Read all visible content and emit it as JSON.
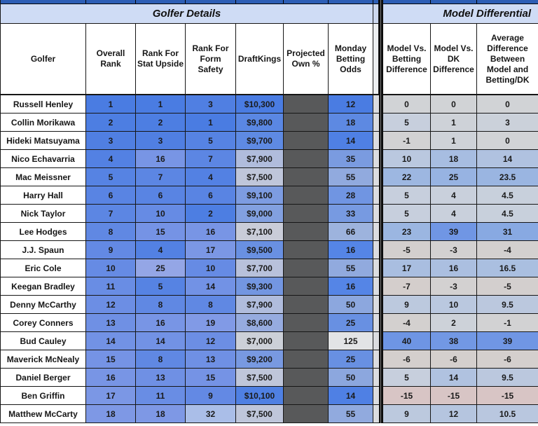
{
  "sections": {
    "golfer_details": "Golfer Details",
    "model_differential": "Model Differential"
  },
  "columns": [
    "Golfer",
    "Overall Rank",
    "Rank For Stat Upside",
    "Rank For Form Safety",
    "DraftKings",
    "Projected Own %",
    "Monday Betting Odds",
    "Model Vs. Betting Difference",
    "Model Vs. DK Difference",
    "Average Difference Between Model and Betting/DK"
  ],
  "colors": {
    "top_strip": "#2d5eb5",
    "section_band": "#cfdcf5",
    "own_cell": "#58595a",
    "strong_blue": "#4a7ce2",
    "neutral_gray": "#d1d3d6",
    "negative_pink": "#d8c5c5"
  },
  "rows": [
    {
      "golfer": "Russell Henley",
      "ranks": [
        {
          "v": "1",
          "bg": "#4a7ce2"
        },
        {
          "v": "1",
          "bg": "#4a7ce2"
        },
        {
          "v": "3",
          "bg": "#507fe2"
        }
      ],
      "dk": {
        "v": "$10,300",
        "bg": "#4a7ce2"
      },
      "odds": {
        "v": "12",
        "bg": "#4a7ce2"
      },
      "model": [
        {
          "v": "0",
          "bg": "#d1d3d6"
        },
        {
          "v": "0",
          "bg": "#d1d3d6"
        },
        {
          "v": "0",
          "bg": "#d1d3d6"
        }
      ]
    },
    {
      "golfer": "Collin Morikawa",
      "ranks": [
        {
          "v": "2",
          "bg": "#4d7ee2"
        },
        {
          "v": "2",
          "bg": "#4d7ee2"
        },
        {
          "v": "1",
          "bg": "#4a7ce2"
        }
      ],
      "dk": {
        "v": "$9,800",
        "bg": "#5a87e3"
      },
      "odds": {
        "v": "18",
        "bg": "#5d89e2"
      },
      "model": [
        {
          "v": "5",
          "bg": "#c7cfdd"
        },
        {
          "v": "1",
          "bg": "#ced2d8"
        },
        {
          "v": "3",
          "bg": "#cbd1da"
        }
      ]
    },
    {
      "golfer": "Hideki Matsuyama",
      "ranks": [
        {
          "v": "3",
          "bg": "#507fe2"
        },
        {
          "v": "3",
          "bg": "#507fe2"
        },
        {
          "v": "5",
          "bg": "#5683e3"
        }
      ],
      "dk": {
        "v": "$9,700",
        "bg": "#5e8ae3"
      },
      "odds": {
        "v": "14",
        "bg": "#4f80e4"
      },
      "model": [
        {
          "v": "-1",
          "bg": "#d2d2d3"
        },
        {
          "v": "1",
          "bg": "#ced2d8"
        },
        {
          "v": "0",
          "bg": "#d1d3d6"
        }
      ]
    },
    {
      "golfer": "Nico Echavarria",
      "ranks": [
        {
          "v": "4",
          "bg": "#5381e3"
        },
        {
          "v": "16",
          "bg": "#7895e5"
        },
        {
          "v": "7",
          "bg": "#5c86e3"
        }
      ],
      "dk": {
        "v": "$7,900",
        "bg": "#b0bcdc"
      },
      "odds": {
        "v": "35",
        "bg": "#7a9be0"
      },
      "model": [
        {
          "v": "10",
          "bg": "#bac8df"
        },
        {
          "v": "18",
          "bg": "#a7bde1"
        },
        {
          "v": "14",
          "bg": "#b0c2e0"
        }
      ]
    },
    {
      "golfer": "Mac Meissner",
      "ranks": [
        {
          "v": "5",
          "bg": "#5683e3"
        },
        {
          "v": "7",
          "bg": "#5c86e3"
        },
        {
          "v": "4",
          "bg": "#5381e3"
        }
      ],
      "dk": {
        "v": "$7,500",
        "bg": "#bfc6da"
      },
      "odds": {
        "v": "55",
        "bg": "#91aade"
      },
      "model": [
        {
          "v": "22",
          "bg": "#9db7e1"
        },
        {
          "v": "25",
          "bg": "#97b3e2"
        },
        {
          "v": "23.5",
          "bg": "#9ab5e1"
        }
      ]
    },
    {
      "golfer": "Harry Hall",
      "ranks": [
        {
          "v": "6",
          "bg": "#5984e3"
        },
        {
          "v": "6",
          "bg": "#5984e3"
        },
        {
          "v": "6",
          "bg": "#5984e3"
        }
      ],
      "dk": {
        "v": "$9,100",
        "bg": "#7d9ce1"
      },
      "odds": {
        "v": "28",
        "bg": "#7095e2"
      },
      "model": [
        {
          "v": "5",
          "bg": "#c7cfdd"
        },
        {
          "v": "4",
          "bg": "#c9d0dc"
        },
        {
          "v": "4.5",
          "bg": "#c8d0dc"
        }
      ]
    },
    {
      "golfer": "Nick Taylor",
      "ranks": [
        {
          "v": "7",
          "bg": "#5c86e3"
        },
        {
          "v": "10",
          "bg": "#668be4"
        },
        {
          "v": "2",
          "bg": "#4d7ee2"
        }
      ],
      "dk": {
        "v": "$9,000",
        "bg": "#82a0e0"
      },
      "odds": {
        "v": "33",
        "bg": "#779ae1"
      },
      "model": [
        {
          "v": "5",
          "bg": "#c7cfdd"
        },
        {
          "v": "4",
          "bg": "#c9d0dc"
        },
        {
          "v": "4.5",
          "bg": "#c8d0dc"
        }
      ]
    },
    {
      "golfer": "Lee Hodges",
      "ranks": [
        {
          "v": "8",
          "bg": "#6088e3"
        },
        {
          "v": "15",
          "bg": "#7593e5"
        },
        {
          "v": "16",
          "bg": "#7895e5"
        }
      ],
      "dk": {
        "v": "$7,100",
        "bg": "#c9ccd8"
      },
      "odds": {
        "v": "66",
        "bg": "#9db3dd"
      },
      "model": [
        {
          "v": "23",
          "bg": "#9bb6e1"
        },
        {
          "v": "39",
          "bg": "#7096e4"
        },
        {
          "v": "31",
          "bg": "#88a9e2"
        }
      ]
    },
    {
      "golfer": "J.J. Spaun",
      "ranks": [
        {
          "v": "9",
          "bg": "#6389e4"
        },
        {
          "v": "4",
          "bg": "#5381e3"
        },
        {
          "v": "17",
          "bg": "#7b97e5"
        }
      ],
      "dk": {
        "v": "$9,500",
        "bg": "#6990e2"
      },
      "odds": {
        "v": "16",
        "bg": "#5585e6"
      },
      "model": [
        {
          "v": "-5",
          "bg": "#d3cfce"
        },
        {
          "v": "-3",
          "bg": "#d3d1d1"
        },
        {
          "v": "-4",
          "bg": "#d3d0cf"
        }
      ]
    },
    {
      "golfer": "Eric Cole",
      "ranks": [
        {
          "v": "10",
          "bg": "#668be4"
        },
        {
          "v": "25",
          "bg": "#94a6e6"
        },
        {
          "v": "10",
          "bg": "#668be4"
        }
      ],
      "dk": {
        "v": "$7,700",
        "bg": "#b8c1db"
      },
      "odds": {
        "v": "55",
        "bg": "#91aade"
      },
      "model": [
        {
          "v": "17",
          "bg": "#a9bee0"
        },
        {
          "v": "16",
          "bg": "#abbfe0"
        },
        {
          "v": "16.5",
          "bg": "#aabfe0"
        }
      ]
    },
    {
      "golfer": "Keegan Bradley",
      "ranks": [
        {
          "v": "11",
          "bg": "#698de4"
        },
        {
          "v": "5",
          "bg": "#5683e3"
        },
        {
          "v": "14",
          "bg": "#7292e5"
        }
      ],
      "dk": {
        "v": "$9,300",
        "bg": "#7396e1"
      },
      "odds": {
        "v": "16",
        "bg": "#5585e6"
      },
      "model": [
        {
          "v": "-7",
          "bg": "#d4cecc"
        },
        {
          "v": "-3",
          "bg": "#d3d1d1"
        },
        {
          "v": "-5",
          "bg": "#d3cfce"
        }
      ]
    },
    {
      "golfer": "Denny McCarthy",
      "ranks": [
        {
          "v": "12",
          "bg": "#6c8ee4"
        },
        {
          "v": "8",
          "bg": "#6088e3"
        },
        {
          "v": "8",
          "bg": "#6088e3"
        }
      ],
      "dk": {
        "v": "$7,900",
        "bg": "#b0bcdc"
      },
      "odds": {
        "v": "50",
        "bg": "#8ca7de"
      },
      "model": [
        {
          "v": "9",
          "bg": "#bcc9de"
        },
        {
          "v": "10",
          "bg": "#bac8df"
        },
        {
          "v": "9.5",
          "bg": "#bbc8de"
        }
      ]
    },
    {
      "golfer": "Corey Conners",
      "ranks": [
        {
          "v": "13",
          "bg": "#6f90e4"
        },
        {
          "v": "16",
          "bg": "#7895e5"
        },
        {
          "v": "19",
          "bg": "#819ae6"
        }
      ],
      "dk": {
        "v": "$8,600",
        "bg": "#96abdf"
      },
      "odds": {
        "v": "25",
        "bg": "#6890e2"
      },
      "model": [
        {
          "v": "-4",
          "bg": "#d3d0cf"
        },
        {
          "v": "2",
          "bg": "#cdd2d9"
        },
        {
          "v": "-1",
          "bg": "#d2d2d3"
        }
      ]
    },
    {
      "golfer": "Bud Cauley",
      "ranks": [
        {
          "v": "14",
          "bg": "#7292e5"
        },
        {
          "v": "14",
          "bg": "#7292e5"
        },
        {
          "v": "12",
          "bg": "#6c8ee4"
        }
      ],
      "dk": {
        "v": "$7,000",
        "bg": "#ccd0d8"
      },
      "odds": {
        "v": "125",
        "bg": "#e2e4e6"
      },
      "model": [
        {
          "v": "40",
          "bg": "#6e95e4"
        },
        {
          "v": "38",
          "bg": "#7298e4"
        },
        {
          "v": "39",
          "bg": "#7096e4"
        }
      ]
    },
    {
      "golfer": "Maverick McNealy",
      "ranks": [
        {
          "v": "15",
          "bg": "#7593e5"
        },
        {
          "v": "8",
          "bg": "#6088e3"
        },
        {
          "v": "13",
          "bg": "#6f90e4"
        }
      ],
      "dk": {
        "v": "$9,200",
        "bg": "#7899e1"
      },
      "odds": {
        "v": "25",
        "bg": "#6890e2"
      },
      "model": [
        {
          "v": "-6",
          "bg": "#d4cfcd"
        },
        {
          "v": "-6",
          "bg": "#d4cfcd"
        },
        {
          "v": "-6",
          "bg": "#d4cfcd"
        }
      ]
    },
    {
      "golfer": "Daniel Berger",
      "ranks": [
        {
          "v": "16",
          "bg": "#7895e5"
        },
        {
          "v": "13",
          "bg": "#6f90e4"
        },
        {
          "v": "15",
          "bg": "#7593e5"
        }
      ],
      "dk": {
        "v": "$7,500",
        "bg": "#bfc6da"
      },
      "odds": {
        "v": "50",
        "bg": "#8ca7de"
      },
      "model": [
        {
          "v": "5",
          "bg": "#c7cfdd"
        },
        {
          "v": "14",
          "bg": "#b0c2e0"
        },
        {
          "v": "9.5",
          "bg": "#bbc8de"
        }
      ]
    },
    {
      "golfer": "Ben Griffin",
      "ranks": [
        {
          "v": "17",
          "bg": "#7b97e5"
        },
        {
          "v": "11",
          "bg": "#698de4"
        },
        {
          "v": "9",
          "bg": "#6389e4"
        }
      ],
      "dk": {
        "v": "$10,100",
        "bg": "#4f80e3"
      },
      "odds": {
        "v": "14",
        "bg": "#4f80e4"
      },
      "model": [
        {
          "v": "-15",
          "bg": "#d8c5c5"
        },
        {
          "v": "-15",
          "bg": "#d8c5c5"
        },
        {
          "v": "-15",
          "bg": "#d8c5c5"
        }
      ]
    },
    {
      "golfer": "Matthew McCarty",
      "ranks": [
        {
          "v": "18",
          "bg": "#7e98e5"
        },
        {
          "v": "18",
          "bg": "#7e98e5"
        },
        {
          "v": "32",
          "bg": "#aabee8"
        }
      ],
      "dk": {
        "v": "$7,500",
        "bg": "#bfc6da"
      },
      "odds": {
        "v": "55",
        "bg": "#91aade"
      },
      "model": [
        {
          "v": "9",
          "bg": "#bcc9de"
        },
        {
          "v": "12",
          "bg": "#b5c5df"
        },
        {
          "v": "10.5",
          "bg": "#b9c7df"
        }
      ]
    }
  ]
}
